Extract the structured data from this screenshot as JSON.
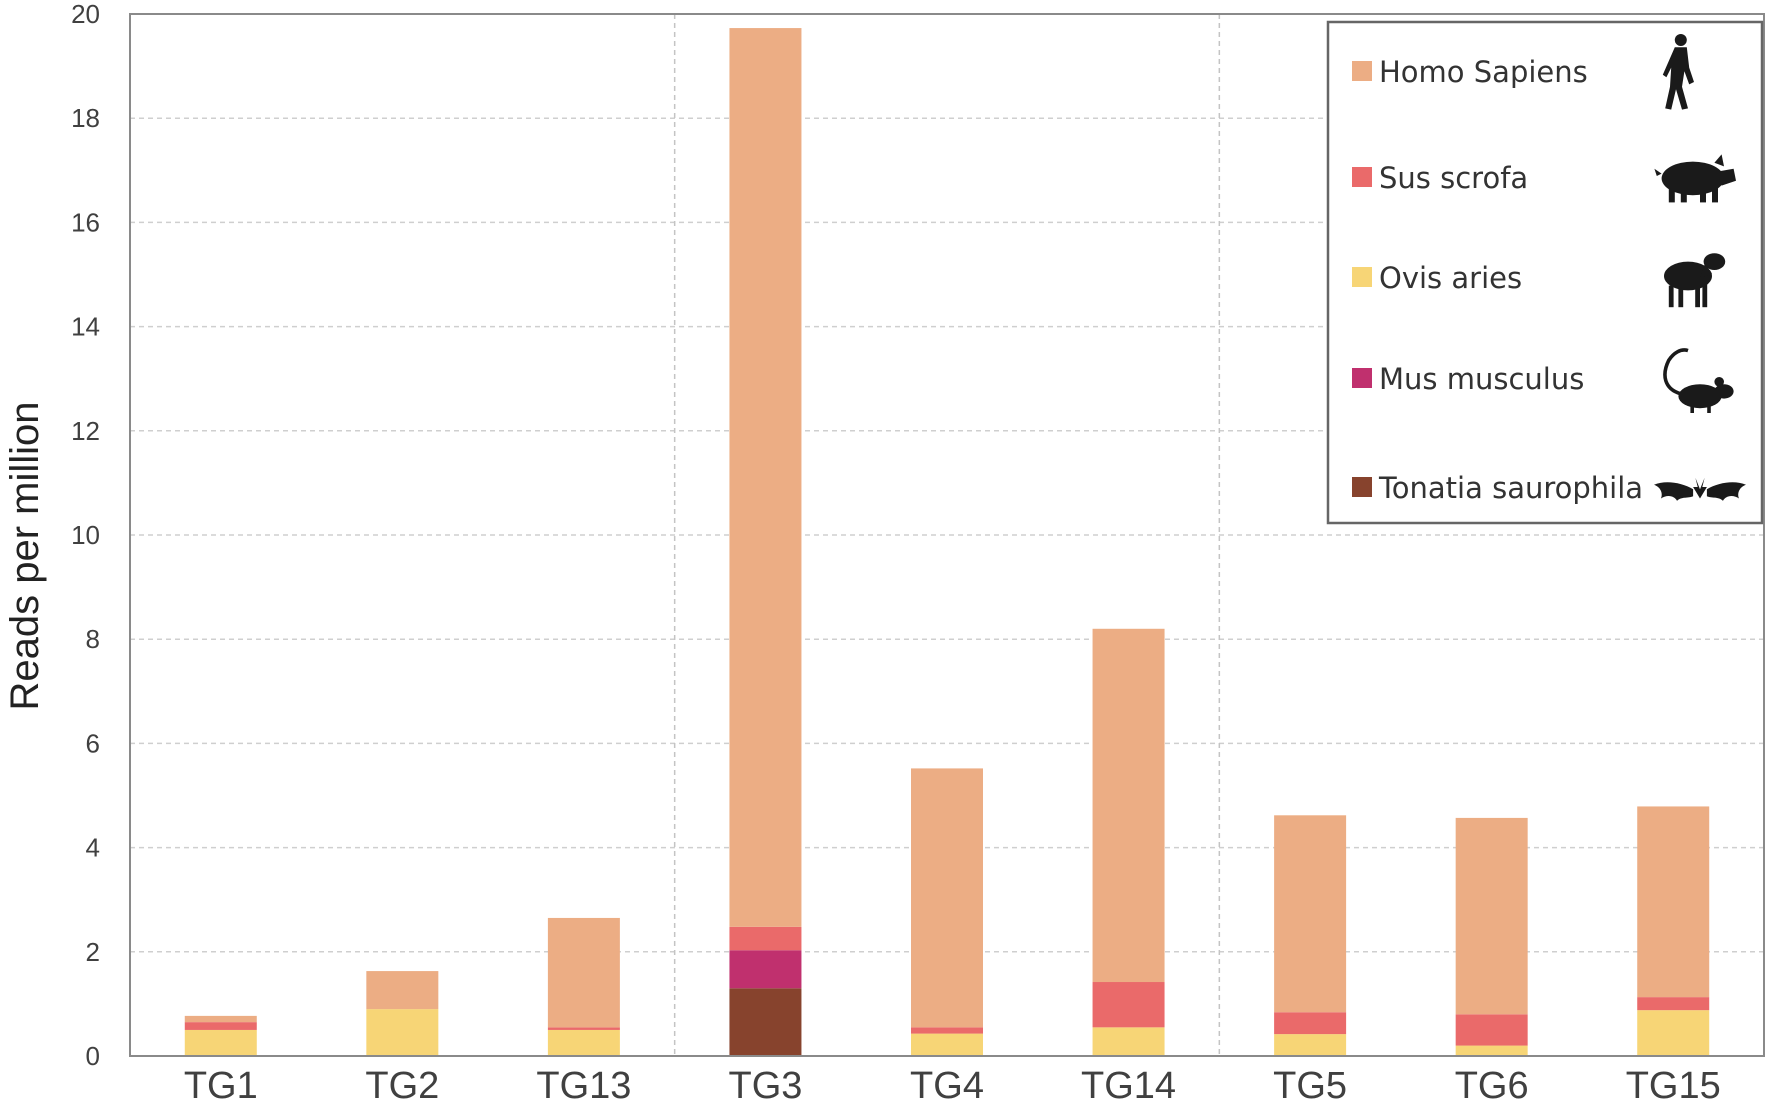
{
  "chart_data": {
    "type": "bar",
    "stacked": true,
    "title": "",
    "xlabel": "",
    "ylabel": "Reads per million",
    "ylim": [
      0,
      20
    ],
    "yticks": [
      "0",
      "2",
      "4",
      "6",
      "8",
      "10",
      "12",
      "14",
      "16",
      "18",
      "20"
    ],
    "grid": "horizontal dashed",
    "group_separators_after": [
      "TG13",
      "TG14"
    ],
    "legend_position": "top-right",
    "categories": [
      "TG1",
      "TG2",
      "TG13",
      "TG3",
      "TG4",
      "TG14",
      "TG5",
      "TG6",
      "TG15"
    ],
    "series": [
      {
        "name": "Tonatia saurophila",
        "color": "#87432d",
        "icon": "bat-icon",
        "values": [
          0,
          0,
          0,
          1.3,
          0,
          0,
          0,
          0,
          0
        ]
      },
      {
        "name": "Mus musculus",
        "color": "#c0306e",
        "icon": "mouse-icon",
        "values": [
          0,
          0,
          0,
          0.73,
          0,
          0,
          0,
          0,
          0
        ]
      },
      {
        "name": "Ovis aries",
        "color": "#f7d576",
        "icon": "sheep-icon",
        "values": [
          0.5,
          0.9,
          0.5,
          0,
          0.43,
          0.55,
          0.42,
          0.2,
          0.88
        ]
      },
      {
        "name": "Sus scrofa",
        "color": "#ea6a6a",
        "icon": "pig-icon",
        "values": [
          0.15,
          0,
          0.05,
          0.45,
          0.12,
          0.87,
          0.42,
          0.6,
          0.25
        ]
      },
      {
        "name": "Homo Sapiens",
        "color": "#ecad84",
        "icon": "human-icon",
        "values": [
          0.12,
          0.73,
          2.1,
          17.25,
          4.97,
          6.78,
          3.78,
          3.77,
          3.66
        ]
      }
    ],
    "legend_order": [
      "Homo Sapiens",
      "Sus scrofa",
      "Ovis aries",
      "Mus musculus",
      "Tonatia saurophila"
    ]
  }
}
